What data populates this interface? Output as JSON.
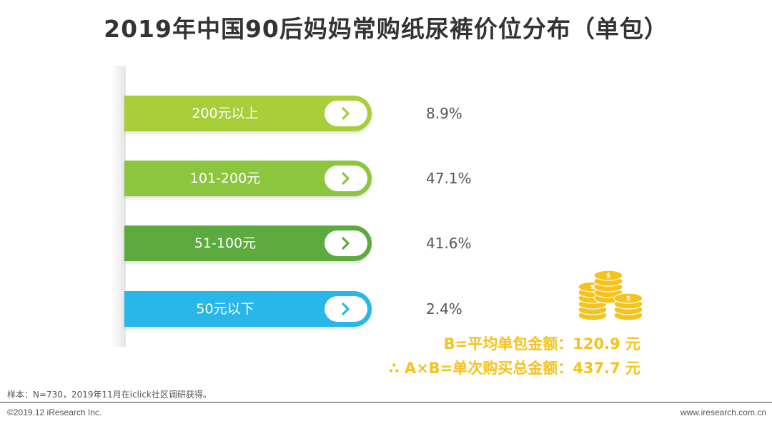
{
  "title": "2019年中国90后妈妈常购纸尿裤价位分布（单包）",
  "chart_data": {
    "type": "bar",
    "categories": [
      "200元以上",
      "101-200元",
      "51-100元",
      "50元以下"
    ],
    "values": [
      8.9,
      47.1,
      41.6,
      2.4
    ],
    "value_labels": [
      "8.9%",
      "47.1%",
      "41.6%",
      "2.4%"
    ],
    "colors": [
      "#A8CE3A",
      "#8CC63F",
      "#5DAA3F",
      "#29B6E8"
    ],
    "arrow_colors": [
      "#A8CE3A",
      "#8CC63F",
      "#5DAA3F",
      "#29B6E8"
    ]
  },
  "formulas": {
    "line1": "B=平均单包金额：120.9 元",
    "line2": "∴ A×B=单次购买总金额：437.7 元",
    "color": "#F5C31C"
  },
  "note": "样本：N=730，2019年11月在iclick社区调研获得。",
  "footer": {
    "copyright": "©2019.12 iResearch Inc.",
    "website": "www.iresearch.com.cn"
  }
}
